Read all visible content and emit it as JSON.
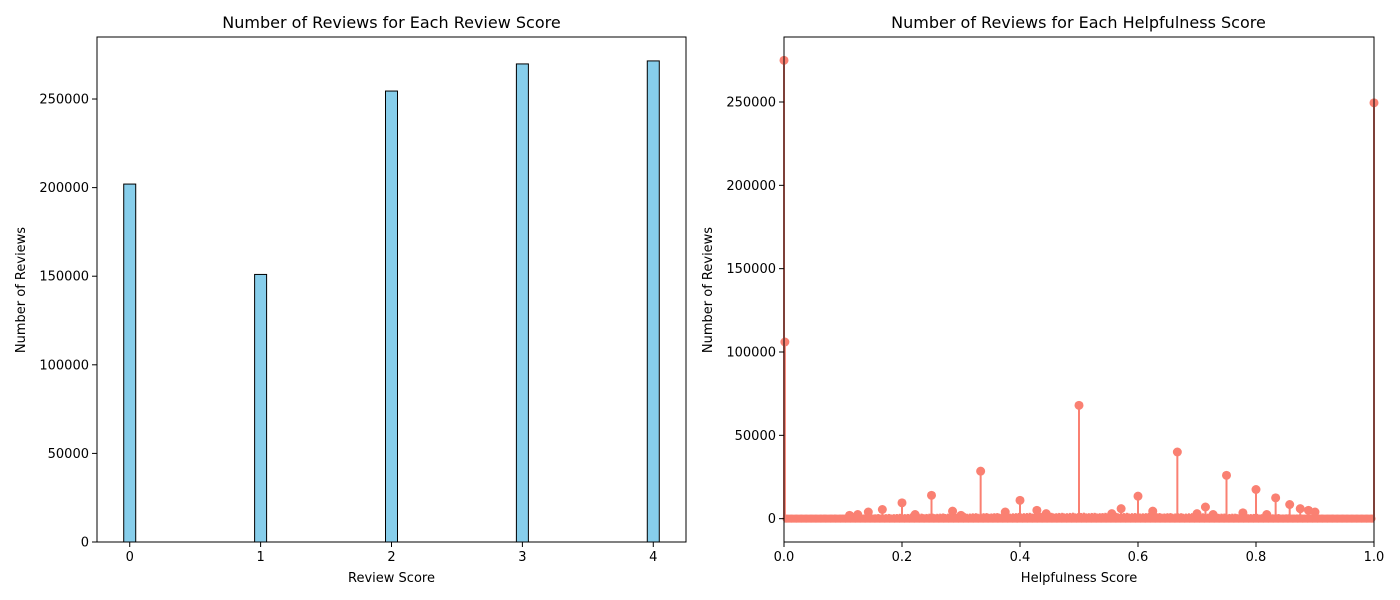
{
  "chart_data": [
    {
      "type": "bar",
      "title": "Number of Reviews for Each Review Score",
      "xlabel": "Review Score",
      "ylabel": "Number of Reviews",
      "categories": [
        "0",
        "1",
        "2",
        "3",
        "4"
      ],
      "x": [
        0,
        1,
        2,
        3,
        4
      ],
      "values": [
        202000,
        151000,
        254500,
        269800,
        271500
      ],
      "xlim": [
        -0.25,
        4.25
      ],
      "ylim": [
        0,
        285000
      ],
      "xticks": [
        "0",
        "1",
        "2",
        "3",
        "4"
      ],
      "yticks": [
        "0",
        "50000",
        "100000",
        "150000",
        "200000",
        "250000"
      ],
      "bar_color": "#87ceeb",
      "edge_color": "#000000",
      "grid": false
    },
    {
      "type": "scatter",
      "title": "Number of Reviews for Each Helpfulness Score",
      "xlabel": "Helpfulness Score",
      "ylabel": "Number of Reviews",
      "style": "stem",
      "xlim": [
        0,
        1
      ],
      "ylim": [
        -14000,
        289000
      ],
      "xticks": [
        "0.0",
        "0.2",
        "0.4",
        "0.6",
        "0.8",
        "1.0"
      ],
      "yticks": [
        "0",
        "50000",
        "100000",
        "150000",
        "200000",
        "250000"
      ],
      "color": "#fa8072",
      "grid": false,
      "x": [
        0.0,
        0.0015,
        0.1111,
        0.125,
        0.1429,
        0.1667,
        0.2,
        0.2222,
        0.25,
        0.2857,
        0.3,
        0.3333,
        0.375,
        0.4,
        0.4286,
        0.4444,
        0.5,
        0.5556,
        0.5714,
        0.6,
        0.625,
        0.6667,
        0.7,
        0.7143,
        0.7273,
        0.75,
        0.7778,
        0.8,
        0.8182,
        0.8333,
        0.8571,
        0.875,
        0.8889,
        0.9,
        1.0
      ],
      "y": [
        275000,
        106000,
        2000,
        2500,
        4000,
        5500,
        9500,
        2500,
        14000,
        4500,
        2000,
        28500,
        4000,
        11000,
        5000,
        3000,
        68000,
        3000,
        6000,
        13500,
        4500,
        40000,
        3000,
        7000,
        2500,
        26000,
        3500,
        17500,
        2500,
        12500,
        8500,
        6000,
        5000,
        4000,
        249500
      ]
    }
  ]
}
